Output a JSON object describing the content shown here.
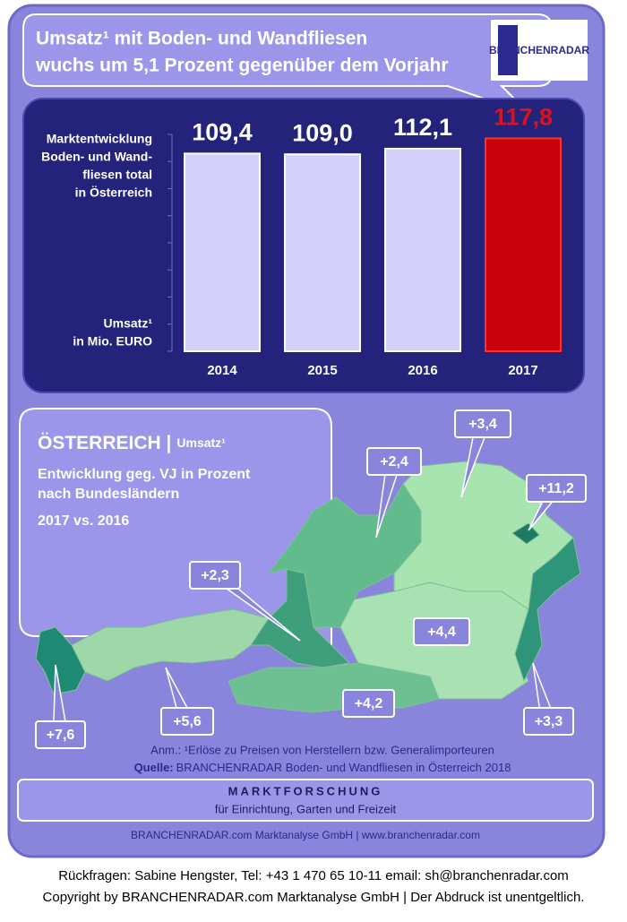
{
  "header": {
    "title_lines": [
      "Umsatz¹ mit  Boden- und Wandfliesen",
      "wuchs um 5,1 Prozent gegenüber dem Vorjahr"
    ],
    "logo": "BRANCHENRADAR"
  },
  "chart_data": {
    "type": "bar",
    "title_lines": [
      "Marktentwicklung",
      "Boden- und Wand-",
      "fliesen total",
      "in Österreich"
    ],
    "ylabel_lines": [
      "Umsatz¹",
      "in Mio. EURO"
    ],
    "categories": [
      "2014",
      "2015",
      "2016",
      "2017"
    ],
    "values": [
      109.4,
      109.0,
      112.1,
      117.8
    ],
    "value_labels": [
      "109,4",
      "109,0",
      "112,1",
      "117,8"
    ],
    "colors": [
      "#d3d1fb",
      "#d3d1fb",
      "#d3d1fb",
      "#c8000a"
    ],
    "label_colors": [
      "#ffffff",
      "#ffffff",
      "#ffffff",
      "#e0101a"
    ],
    "ylim": [
      0,
      120
    ],
    "yticks": [
      0,
      15,
      30,
      45,
      60,
      75,
      90,
      105,
      120
    ]
  },
  "map": {
    "title": "ÖSTERREICH |",
    "title_suffix": "Umsatz¹",
    "subtitle_lines": [
      "Entwicklung  geg. VJ in Prozent",
      "nach Bundesländern"
    ],
    "comparison": "2017 vs. 2016",
    "labels": [
      "+3,4",
      "+2,4",
      "+11,2",
      "+2,3",
      "+4,4",
      "+7,6",
      "+5,6",
      "+4,2",
      "+3,3"
    ]
  },
  "notes": {
    "annotation": "Anm.: ¹Erlöse zu Preisen von Herstellern bzw. Generalimporteuren",
    "source_label": "Quelle:",
    "source": "BRANCHENRADAR Boden- und Wandfliesen in Österreich 2018",
    "banner_title": "MARKTFORSCHUNG",
    "banner_subtitle": "für Einrichtung, Garten und Freizeit",
    "company": "BRANCHENRADAR.com Marktanalyse GmbH | www.branchenradar.com"
  },
  "footer": {
    "contact": "Rückfragen: Sabine Hengster, Tel: +43 1 470 65 10-11 email: sh@branchenradar.com",
    "copyright": "Copyright by BRANCHENRADAR.com  Marktanalyse GmbH | Der Abdruck ist unentgeltlich."
  }
}
